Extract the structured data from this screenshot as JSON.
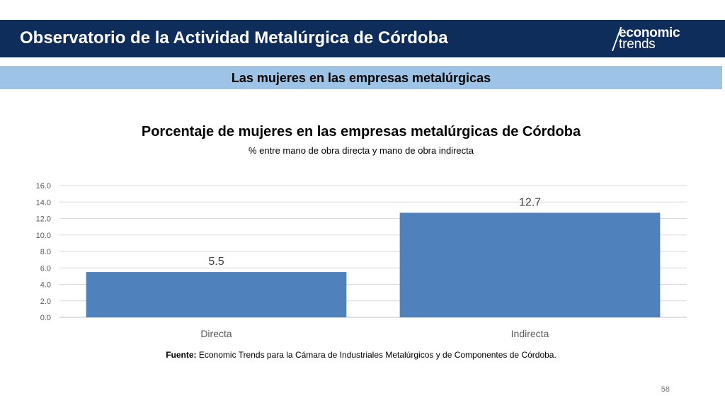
{
  "header": {
    "title": "Observatorio de la Actividad Metalúrgica de Córdoba",
    "logo_line1": "economic",
    "logo_line2": "trends"
  },
  "subheader": {
    "title": "Las mujeres en las empresas metalúrgicas"
  },
  "chart_data": {
    "type": "bar",
    "title": "Porcentaje de mujeres en las empresas metalúrgicas de Córdoba",
    "subtitle": "% entre mano de obra directa y mano de obra indirecta",
    "categories": [
      "Directa",
      "Indirecta"
    ],
    "values": [
      5.5,
      12.7
    ],
    "value_labels": [
      "5.5",
      "12.7"
    ],
    "yticks": [
      "0.0",
      "2.0",
      "4.0",
      "6.0",
      "8.0",
      "10.0",
      "12.0",
      "14.0",
      "16.0"
    ],
    "ylim": [
      0,
      16
    ],
    "xlabel": "",
    "ylabel": "",
    "grid": true,
    "bar_color": "#4f81bd"
  },
  "source": {
    "label": "Fuente:",
    "text": "Economic Trends para la Cámara de Industriales Metalúrgicos y de Componentes de Córdoba."
  },
  "page_number": "58",
  "colors": {
    "header_bg": "#0e2d5a",
    "subheader_bg": "#9dc3e6"
  }
}
